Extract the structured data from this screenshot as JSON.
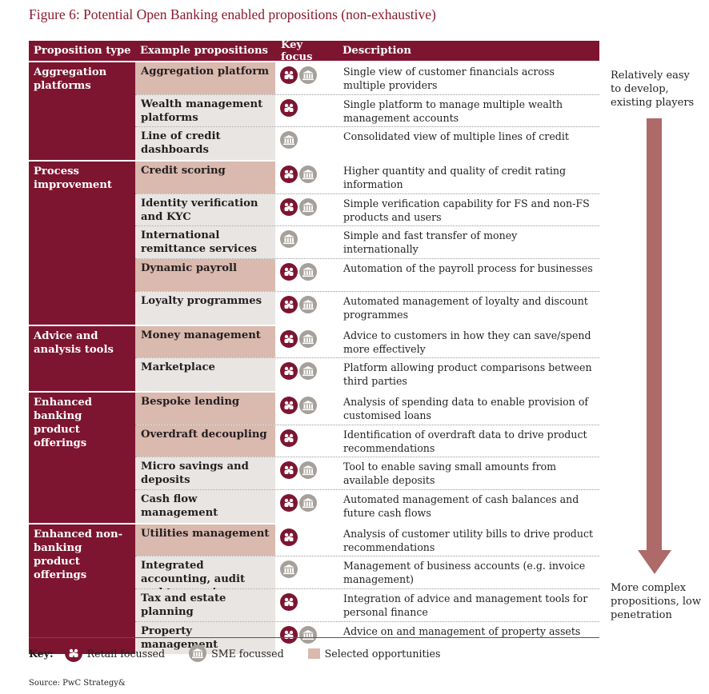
{
  "title": "Figure 6: Potential Open Banking enabled propositions (non-exhaustive)",
  "headers": [
    "Proposition type",
    "Example propositions",
    "Key focus",
    "Description"
  ],
  "groups": [
    {
      "type": "Aggregation platforms",
      "rows": [
        {
          "name": "Aggregation platform",
          "selected": true,
          "focus": [
            "retail",
            "sme"
          ],
          "desc": "Single view of customer financials across multiple providers"
        },
        {
          "name": "Wealth management platforms",
          "selected": false,
          "focus": [
            "retail"
          ],
          "desc": "Single platform to manage multiple wealth management accounts"
        },
        {
          "name": "Line of credit dashboards",
          "selected": false,
          "focus": [
            "sme"
          ],
          "desc": "Consolidated view of multiple lines of credit"
        }
      ]
    },
    {
      "type": "Process improvement",
      "rows": [
        {
          "name": "Credit scoring",
          "selected": true,
          "focus": [
            "retail",
            "sme"
          ],
          "desc": "Higher quantity and quality of credit rating information"
        },
        {
          "name": "Identity verification and KYC",
          "selected": false,
          "focus": [
            "retail",
            "sme"
          ],
          "desc": "Simple verification capability for FS and non-FS products and users"
        },
        {
          "name": "International remittance services",
          "selected": false,
          "focus": [
            "sme"
          ],
          "desc": "Simple and fast transfer of money internationally"
        },
        {
          "name": "Dynamic payroll",
          "selected": true,
          "focus": [
            "retail",
            "sme"
          ],
          "desc": "Automation of the payroll process for businesses"
        },
        {
          "name": "Loyalty programmes",
          "selected": false,
          "focus": [
            "retail",
            "sme"
          ],
          "desc": "Automated management of loyalty and discount programmes"
        }
      ]
    },
    {
      "type": "Advice and analysis tools",
      "rows": [
        {
          "name": "Money management",
          "selected": true,
          "focus": [
            "retail",
            "sme"
          ],
          "desc": "Advice to customers in how they can save/spend more effectively"
        },
        {
          "name": "Marketplace",
          "selected": false,
          "focus": [
            "retail",
            "sme"
          ],
          "desc": "Platform allowing product comparisons between third parties"
        }
      ]
    },
    {
      "type": "Enhanced banking product offerings",
      "rows": [
        {
          "name": "Bespoke lending",
          "selected": true,
          "focus": [
            "retail",
            "sme"
          ],
          "desc": "Analysis of spending data to enable provision of customised loans"
        },
        {
          "name": "Overdraft decoupling",
          "selected": true,
          "focus": [
            "retail"
          ],
          "desc": "Identification of overdraft data to drive product recommendations"
        },
        {
          "name": "Micro savings and deposits",
          "selected": false,
          "focus": [
            "retail",
            "sme"
          ],
          "desc": "Tool to enable saving small amounts from available deposits"
        },
        {
          "name": "Cash flow management",
          "selected": false,
          "focus": [
            "retail",
            "sme"
          ],
          "desc": "Automated management of cash balances and future cash flows"
        }
      ]
    },
    {
      "type": "Enhanced non-banking product offerings",
      "rows": [
        {
          "name": "Utilities management",
          "selected": true,
          "focus": [
            "retail"
          ],
          "desc": "Analysis of customer utility bills to drive product recommendations"
        },
        {
          "name": "Integrated accounting, audit and tax services",
          "selected": false,
          "focus": [
            "sme"
          ],
          "desc": "Management of business accounts (e.g. invoice management)"
        },
        {
          "name": "Tax and estate planning",
          "selected": false,
          "focus": [
            "retail"
          ],
          "desc": "Integration of advice and management tools for personal finance"
        },
        {
          "name": "Property management",
          "selected": false,
          "focus": [
            "retail",
            "sme"
          ],
          "desc": "Advice on and management of property assets"
        }
      ]
    }
  ],
  "side": {
    "top": "Relatively easy to develop, existing players",
    "bottom": "More complex propositions, low penetration"
  },
  "key": {
    "label": "Key:",
    "retail": "Retail focussed",
    "sme": "SME focussed",
    "selected": "Selected opportunities"
  },
  "source": "Source: PwC Strategy&",
  "colors": {
    "brand": "#7d1530",
    "selected": "#dab9ae",
    "unselected": "#e8e5e2",
    "sme": "#a6a09b",
    "arrow": "#ad6a68"
  }
}
